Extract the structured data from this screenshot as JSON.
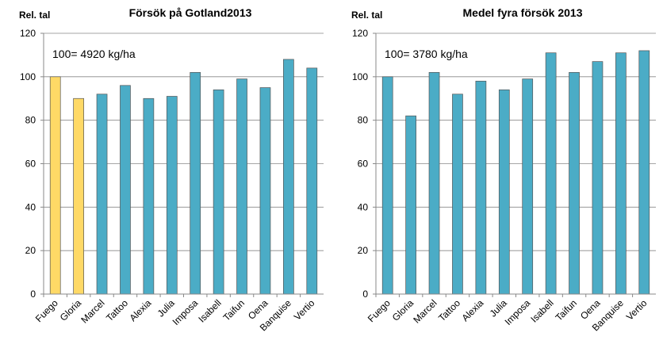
{
  "chart_data": [
    {
      "type": "bar",
      "title": "Försök på Gotland2013",
      "y_label": "Rel. tal",
      "annotation": "100= 4920 kg/ha",
      "categories": [
        "Fuego",
        "Gloria",
        "Marcel",
        "Tattoo",
        "Alexia",
        "Julia",
        "Imposa",
        "Isabell",
        "Taifun",
        "Oena",
        "Banquise",
        "Vertio"
      ],
      "values": [
        100,
        90,
        92,
        96,
        90,
        91,
        102,
        94,
        99,
        95,
        108,
        104
      ],
      "colors": [
        "#ffd966",
        "#ffd966",
        "#4bacc6",
        "#4bacc6",
        "#4bacc6",
        "#4bacc6",
        "#4bacc6",
        "#4bacc6",
        "#4bacc6",
        "#4bacc6",
        "#4bacc6",
        "#4bacc6"
      ],
      "ylim": [
        0,
        120
      ],
      "yticks": [
        0,
        20,
        40,
        60,
        80,
        100,
        120
      ],
      "grid": true
    },
    {
      "type": "bar",
      "title": "Medel fyra försök 2013",
      "y_label": "Rel. tal",
      "annotation": "100= 3780 kg/ha",
      "categories": [
        "Fuego",
        "Gloria",
        "Marcel",
        "Tattoo",
        "Alexia",
        "Julia",
        "Imposa",
        "Isabell",
        "Taifun",
        "Oena",
        "Banquise",
        "Vertio"
      ],
      "values": [
        100,
        82,
        102,
        92,
        98,
        94,
        99,
        111,
        102,
        107,
        111,
        112
      ],
      "colors": [
        "#4bacc6",
        "#4bacc6",
        "#4bacc6",
        "#4bacc6",
        "#4bacc6",
        "#4bacc6",
        "#4bacc6",
        "#4bacc6",
        "#4bacc6",
        "#4bacc6",
        "#4bacc6",
        "#4bacc6"
      ],
      "ylim": [
        0,
        120
      ],
      "yticks": [
        0,
        20,
        40,
        60,
        80,
        100,
        120
      ],
      "grid": true
    }
  ]
}
